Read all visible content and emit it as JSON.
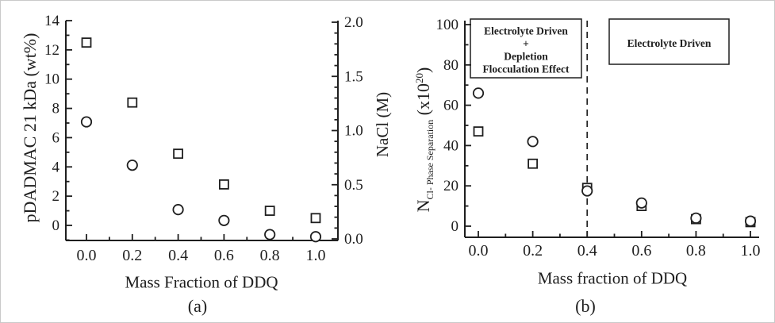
{
  "figure": {
    "background": "#ffffff",
    "ink_color": "#1f1f1f",
    "caption_a": "(a)",
    "caption_b": "(b)"
  },
  "chart_data": [
    {
      "id": "a",
      "type": "scatter",
      "caption": "(a)",
      "xlabel": "Mass Fraction of DDQ",
      "x_axis": {
        "tick_values": [
          0.0,
          0.2,
          0.4,
          0.6,
          0.8,
          1.0
        ],
        "tick_labels": [
          "0.0",
          "0.2",
          "0.4",
          "0.6",
          "0.8",
          "1.0"
        ],
        "minor_values": [
          0.1,
          0.3,
          0.5,
          0.7,
          0.9
        ]
      },
      "left_axis": {
        "label": "pDADMAC 21 kDa (wt%)",
        "range": [
          -1.03,
          14
        ],
        "tick_values": [
          0,
          2,
          4,
          6,
          8,
          10,
          12,
          14
        ],
        "tick_labels": [
          "0",
          "2",
          "4",
          "6",
          "8",
          "10",
          "12",
          "14"
        ],
        "minor_values": [
          -1,
          1,
          3,
          5,
          7,
          9,
          11,
          13
        ]
      },
      "right_axis": {
        "label": "NaCl (M)",
        "range": [
          0,
          2.0
        ],
        "tick_values": [
          0,
          0.5,
          1.0,
          1.5,
          2.0
        ],
        "tick_labels": [
          "0.0",
          "0.5",
          "1.0",
          "1.5",
          "2.0"
        ],
        "minor_values": [
          0.1,
          0.2,
          0.3,
          0.4,
          0.6,
          0.7,
          0.8,
          0.9,
          1.1,
          1.2,
          1.3,
          1.4,
          1.6,
          1.7,
          1.8,
          1.9
        ]
      },
      "series": [
        {
          "name": "pDADMAC 21 kDa wt% (open squares, left axis)",
          "marker": "square",
          "axis": "left",
          "x": [
            0.0,
            0.2,
            0.4,
            0.6,
            0.8,
            1.0
          ],
          "y": [
            12.5,
            8.4,
            4.9,
            2.8,
            1.0,
            0.5
          ]
        },
        {
          "name": "NaCl M (open circles, right axis)",
          "marker": "circle",
          "axis": "right",
          "x": [
            0.0,
            0.2,
            0.4,
            0.6,
            0.8,
            1.0
          ],
          "y": [
            1.08,
            0.68,
            0.27,
            0.17,
            0.04,
            0.02
          ]
        }
      ]
    },
    {
      "id": "b",
      "type": "scatter",
      "caption": "(b)",
      "xlabel": "Mass fraction of DDQ",
      "ylabel_rich": {
        "main": "N",
        "subscript": "Cl- Phase Separation",
        "paren": " (x10",
        "superscript": "20",
        "close": ")"
      },
      "x_axis": {
        "tick_values": [
          0.0,
          0.2,
          0.4,
          0.6,
          0.8,
          1.0
        ],
        "tick_labels": [
          "0.0",
          "0.2",
          "0.4",
          "0.6",
          "0.8",
          "1.0"
        ],
        "minor_values": [
          0.1,
          0.3,
          0.5,
          0.7,
          0.9
        ]
      },
      "left_axis": {
        "range": [
          0,
          100
        ],
        "tick_values": [
          0,
          20,
          40,
          60,
          80,
          100
        ],
        "tick_labels": [
          "0",
          "20",
          "40",
          "60",
          "80",
          "100"
        ],
        "minor_values": [
          10,
          30,
          50,
          70,
          90
        ]
      },
      "series": [
        {
          "name": "open squares",
          "marker": "square",
          "axis": "left",
          "x": [
            0.0,
            0.2,
            0.4,
            0.6,
            0.8,
            1.0
          ],
          "y": [
            47,
            31,
            19,
            10,
            3.5,
            2
          ]
        },
        {
          "name": "open circles",
          "marker": "circle",
          "axis": "left",
          "x": [
            0.0,
            0.2,
            0.4,
            0.6,
            0.8,
            1.0
          ],
          "y": [
            66,
            42,
            17.5,
            11.5,
            4,
            2.5
          ]
        }
      ],
      "annotations": {
        "dashed_line_x": 0.4,
        "region_boxes": [
          {
            "lines": [
              "Electrolyte Driven",
              "+",
              "Depletion",
              "Flocculation Effect"
            ]
          },
          {
            "lines": [
              "Electrolyte Driven"
            ]
          }
        ]
      }
    }
  ]
}
